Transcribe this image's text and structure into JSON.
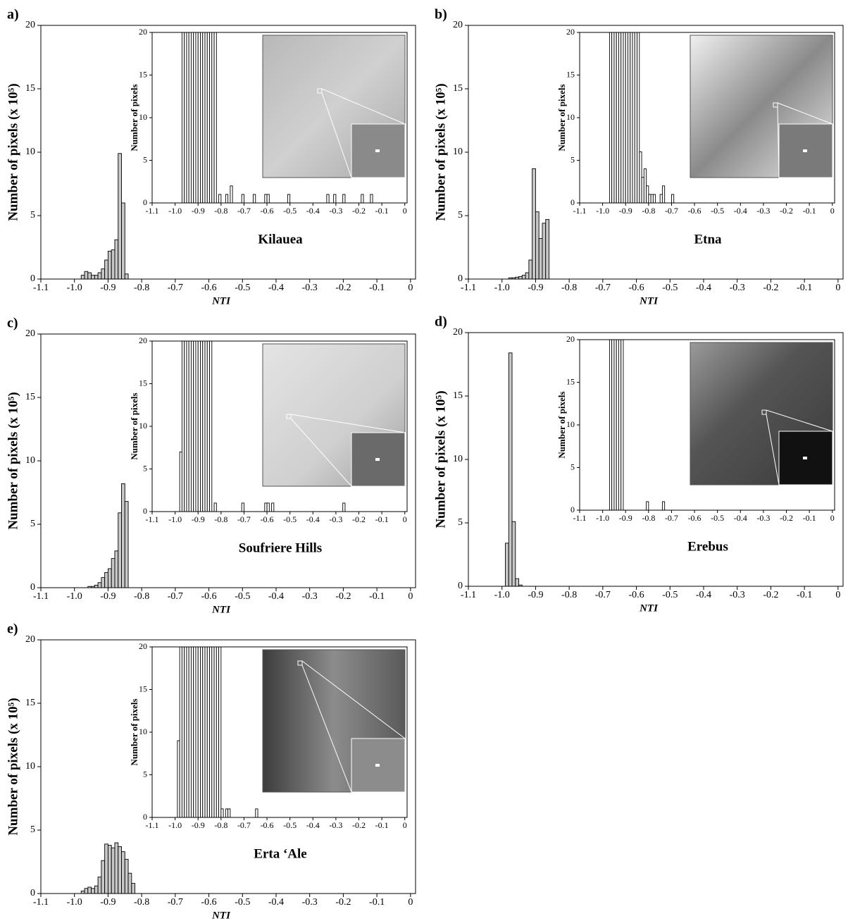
{
  "chart_data": [
    {
      "type": "bar",
      "label": "a)",
      "title": "Kilauea",
      "xlabel": "NTI",
      "ylabel": "Number of pixels (x 10⁵)",
      "color": "#c8c8c8",
      "edgecolor": "#000000",
      "x": [
        -0.975,
        -0.965,
        -0.955,
        -0.945,
        -0.935,
        -0.925,
        -0.915,
        -0.905,
        -0.895,
        -0.885,
        -0.875,
        -0.865,
        -0.855,
        -0.845
      ],
      "values": [
        0.3,
        0.6,
        0.5,
        0.3,
        0.3,
        0.5,
        0.8,
        1.5,
        2.2,
        2.3,
        3.1,
        9.9,
        6.0,
        0.4
      ],
      "xlim": [
        -1.1,
        0.015
      ],
      "ylim": [
        0,
        20
      ],
      "yticks": [
        0,
        5,
        10,
        15,
        20
      ],
      "xticks": [
        -1.1,
        {
          "value": -1,
          "label": "-1.0"
        },
        -0.9,
        -0.8,
        -0.7,
        -0.6,
        -0.5,
        -0.4,
        -0.3,
        -0.2,
        -0.1,
        0
      ],
      "inset": {
        "type": "bar",
        "ylabel": "Number of pixels",
        "color": "#ffffff",
        "edgecolor": "#000000",
        "x": [
          -0.965,
          -0.955,
          -0.945,
          -0.935,
          -0.925,
          -0.915,
          -0.905,
          -0.895,
          -0.885,
          -0.875,
          -0.865,
          -0.855,
          -0.845,
          -0.835,
          -0.825,
          -0.805,
          -0.775,
          -0.755,
          -0.705,
          -0.655,
          -0.605,
          -0.595,
          -0.505,
          -0.335,
          -0.305,
          -0.265,
          -0.185,
          -0.145
        ],
        "values": [
          20,
          20,
          20,
          20,
          20,
          20,
          20,
          20,
          20,
          20,
          20,
          20,
          20,
          20,
          20,
          1,
          1,
          2,
          1,
          1,
          1,
          1,
          1,
          1,
          1,
          1,
          1,
          1
        ],
        "xlim": [
          -1.1,
          0.01
        ],
        "ylim": [
          0,
          20
        ],
        "yticks": [
          0,
          5,
          10,
          15,
          20
        ],
        "xticks": [
          -1.1,
          {
            "value": -1,
            "label": "-1.0"
          },
          -0.9,
          -0.8,
          -0.7,
          -0.6,
          -0.5,
          -0.4,
          -0.3,
          -0.2,
          -0.1,
          0
        ]
      }
    },
    {
      "type": "bar",
      "label": "b)",
      "title": "Etna",
      "xlabel": "NTI",
      "ylabel": "Number of pixels (x 10⁵)",
      "color": "#c8c8c8",
      "edgecolor": "#000000",
      "x": [
        -0.975,
        -0.965,
        -0.955,
        -0.945,
        -0.935,
        -0.925,
        -0.915,
        -0.905,
        -0.895,
        -0.885,
        -0.875,
        -0.865
      ],
      "values": [
        0.1,
        0.1,
        0.15,
        0.2,
        0.3,
        0.5,
        1.5,
        8.7,
        5.3,
        3.2,
        4.4,
        4.7
      ],
      "xlim": [
        -1.1,
        0.015
      ],
      "ylim": [
        0,
        20
      ],
      "yticks": [
        0,
        5,
        10,
        15,
        20
      ],
      "xticks": [
        -1.1,
        {
          "value": -1,
          "label": "-1.0"
        },
        -0.9,
        -0.8,
        -0.7,
        -0.6,
        -0.5,
        -0.4,
        -0.3,
        -0.2,
        -0.1,
        0
      ],
      "inset": {
        "type": "bar",
        "ylabel": "Number of pixels",
        "color": "#ffffff",
        "edgecolor": "#000000",
        "x": [
          -0.965,
          -0.955,
          -0.945,
          -0.935,
          -0.925,
          -0.915,
          -0.905,
          -0.895,
          -0.885,
          -0.875,
          -0.865,
          -0.855,
          -0.845,
          -0.835,
          -0.825,
          -0.815,
          -0.805,
          -0.795,
          -0.785,
          -0.775,
          -0.745,
          -0.735,
          -0.695
        ],
        "values": [
          20,
          20,
          20,
          20,
          20,
          20,
          20,
          20,
          20,
          20,
          20,
          20,
          20,
          6,
          3,
          4,
          2,
          1,
          1,
          1,
          1,
          2,
          1
        ],
        "xlim": [
          -1.1,
          0.01
        ],
        "ylim": [
          0,
          20
        ],
        "yticks": [
          0,
          5,
          10,
          15,
          20
        ],
        "xticks": [
          -1.1,
          {
            "value": -1,
            "label": "-1.0"
          },
          -0.9,
          -0.8,
          -0.7,
          -0.6,
          -0.5,
          -0.4,
          -0.3,
          -0.2,
          -0.1,
          0
        ]
      }
    },
    {
      "type": "bar",
      "label": "c)",
      "title": "Soufriere Hills",
      "xlabel": "NTI",
      "ylabel": "Number of pixels (x 10⁵)",
      "color": "#c8c8c8",
      "edgecolor": "#000000",
      "x": [
        -0.955,
        -0.945,
        -0.935,
        -0.925,
        -0.915,
        -0.905,
        -0.895,
        -0.885,
        -0.875,
        -0.865,
        -0.855,
        -0.845
      ],
      "values": [
        0.1,
        0.1,
        0.2,
        0.4,
        0.8,
        1.2,
        1.5,
        2.3,
        2.9,
        5.9,
        8.2,
        6.8
      ],
      "xlim": [
        -1.1,
        0.015
      ],
      "ylim": [
        0,
        20
      ],
      "yticks": [
        0,
        5,
        10,
        15,
        20
      ],
      "xticks": [
        -1.1,
        {
          "value": -1,
          "label": "-1.0"
        },
        -0.9,
        -0.8,
        -0.7,
        -0.6,
        -0.5,
        -0.4,
        -0.3,
        -0.2,
        -0.1,
        0
      ],
      "inset": {
        "type": "bar",
        "ylabel": "Number of pixels",
        "color": "#ffffff",
        "edgecolor": "#000000",
        "x": [
          -0.975,
          -0.965,
          -0.955,
          -0.945,
          -0.935,
          -0.925,
          -0.915,
          -0.905,
          -0.895,
          -0.885,
          -0.875,
          -0.865,
          -0.855,
          -0.845,
          -0.825,
          -0.705,
          -0.605,
          -0.595,
          -0.575,
          -0.265
        ],
        "values": [
          7,
          20,
          20,
          20,
          20,
          20,
          20,
          20,
          20,
          20,
          20,
          20,
          20,
          20,
          1,
          1,
          1,
          1,
          1,
          1
        ],
        "xlim": [
          -1.1,
          0.01
        ],
        "ylim": [
          0,
          20
        ],
        "yticks": [
          0,
          5,
          10,
          15,
          20
        ],
        "xticks": [
          -1.1,
          {
            "value": -1,
            "label": "-1.0"
          },
          -0.9,
          -0.8,
          -0.7,
          -0.6,
          -0.5,
          -0.4,
          -0.3,
          -0.2,
          -0.1,
          0
        ]
      }
    },
    {
      "type": "bar",
      "label": "d)",
      "title": "Erebus",
      "xlabel": "NTI",
      "ylabel": "Number of pixels (x 10⁵)",
      "color": "#c8c8c8",
      "edgecolor": "#000000",
      "x": [
        -0.985,
        -0.975,
        -0.965,
        -0.955,
        -0.945
      ],
      "values": [
        3.4,
        18.4,
        5.1,
        0.6,
        0.1
      ],
      "xlim": [
        -1.1,
        0.015
      ],
      "ylim": [
        0,
        20
      ],
      "yticks": [
        0,
        5,
        10,
        15,
        20
      ],
      "xticks": [
        -1.1,
        {
          "value": -1,
          "label": "-1.0"
        },
        -0.9,
        -0.8,
        -0.7,
        -0.6,
        -0.5,
        -0.4,
        -0.3,
        -0.2,
        -0.1,
        0
      ],
      "inset": {
        "type": "bar",
        "ylabel": "Number of pixels",
        "color": "#ffffff",
        "edgecolor": "#000000",
        "x": [
          -0.965,
          -0.955,
          -0.945,
          -0.935,
          -0.925,
          -0.915,
          -0.805,
          -0.735
        ],
        "values": [
          20,
          20,
          20,
          20,
          20,
          20,
          1,
          1
        ],
        "xlim": [
          -1.1,
          0.01
        ],
        "ylim": [
          0,
          20
        ],
        "yticks": [
          0,
          5,
          10,
          15,
          20
        ],
        "xticks": [
          -1.1,
          {
            "value": -1,
            "label": "-1.0"
          },
          -0.9,
          -0.8,
          -0.7,
          -0.6,
          -0.5,
          -0.4,
          -0.3,
          -0.2,
          -0.1,
          0
        ]
      }
    },
    {
      "type": "bar",
      "label": "e)",
      "title": "Erta ‘Ale",
      "xlabel": "NTI",
      "ylabel": "Number of pixels (x 10⁵)",
      "color": "#c8c8c8",
      "edgecolor": "#000000",
      "x": [
        -0.975,
        -0.965,
        -0.955,
        -0.945,
        -0.935,
        -0.925,
        -0.915,
        -0.905,
        -0.895,
        -0.885,
        -0.875,
        -0.865,
        -0.855,
        -0.845,
        -0.835,
        -0.825
      ],
      "values": [
        0.2,
        0.4,
        0.5,
        0.4,
        0.6,
        1.3,
        2.6,
        3.9,
        3.8,
        3.6,
        4.0,
        3.7,
        3.3,
        2.7,
        1.6,
        0.8
      ],
      "xlim": [
        -1.1,
        0.015
      ],
      "ylim": [
        0,
        20
      ],
      "yticks": [
        0,
        5,
        10,
        15,
        20
      ],
      "xticks": [
        -1.1,
        {
          "value": -1,
          "label": "-1.0"
        },
        -0.9,
        -0.8,
        -0.7,
        -0.6,
        -0.5,
        -0.4,
        -0.3,
        -0.2,
        -0.1,
        0
      ],
      "inset": {
        "type": "bar",
        "ylabel": "Number of pixels",
        "color": "#ffffff",
        "edgecolor": "#000000",
        "x": [
          -0.985,
          -0.975,
          -0.965,
          -0.955,
          -0.945,
          -0.935,
          -0.925,
          -0.915,
          -0.905,
          -0.895,
          -0.885,
          -0.875,
          -0.865,
          -0.855,
          -0.845,
          -0.835,
          -0.825,
          -0.815,
          -0.805,
          -0.795,
          -0.775,
          -0.765,
          -0.645
        ],
        "values": [
          9,
          20,
          20,
          20,
          20,
          20,
          20,
          20,
          20,
          20,
          20,
          20,
          20,
          20,
          20,
          20,
          20,
          20,
          20,
          1,
          1,
          1,
          1
        ],
        "xlim": [
          -1.1,
          0.01
        ],
        "ylim": [
          0,
          20
        ],
        "yticks": [
          0,
          5,
          10,
          15,
          20
        ],
        "xticks": [
          -1.1,
          {
            "value": -1,
            "label": "-1.0"
          },
          -0.9,
          -0.8,
          -0.7,
          -0.6,
          -0.5,
          -0.4,
          -0.3,
          -0.2,
          -0.1,
          0
        ]
      }
    }
  ]
}
